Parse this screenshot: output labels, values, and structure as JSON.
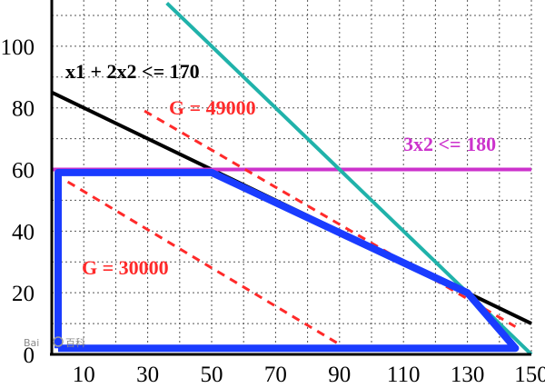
{
  "chart_data": {
    "type": "line",
    "title": "",
    "xlabel": "",
    "ylabel": "",
    "xlim": [
      0,
      150
    ],
    "ylim": [
      0,
      115
    ],
    "grid": true,
    "x_ticks": [
      "10",
      "30",
      "50",
      "70",
      "90",
      "110",
      "130",
      "150"
    ],
    "y_ticks": [
      "0",
      "20",
      "40",
      "60",
      "80",
      "100"
    ],
    "series": [
      {
        "label": "x1 + 2x2 <= 170",
        "color": "#000000",
        "style": "solid",
        "x": [
          0,
          150
        ],
        "y": [
          85,
          10
        ]
      },
      {
        "label": "3x2 <= 180",
        "color": "#cc33cc",
        "style": "solid",
        "x": [
          0,
          150
        ],
        "y": [
          60,
          60
        ]
      },
      {
        "label": "",
        "color": "#20b2aa",
        "style": "solid",
        "x": [
          36,
          150
        ],
        "y": [
          114,
          0
        ]
      },
      {
        "label": "G = 49000",
        "color": "#ff2a2a",
        "style": "dashed",
        "x": [
          29,
          145
        ],
        "y": [
          79,
          9
        ]
      },
      {
        "label": "G = 30000",
        "color": "#ff2a2a",
        "style": "dashed",
        "x": [
          5,
          92
        ],
        "y": [
          56,
          2
        ]
      },
      {
        "label": "",
        "color": "#1a3cff",
        "style": "solid-thick",
        "x": [
          2,
          2,
          50,
          130,
          145,
          2
        ],
        "y": [
          2,
          59,
          59,
          20,
          2,
          2
        ]
      }
    ],
    "annotations": [
      {
        "text": "x1 + 2x2 <= 170",
        "color": "#000000"
      },
      {
        "text": "G = 49000",
        "color": "#ff2a2a"
      },
      {
        "text": "3x2 <= 180",
        "color": "#cc33cc"
      },
      {
        "text": "G = 30000",
        "color": "#ff2a2a"
      }
    ]
  },
  "watermark": {
    "brand": "Bai",
    "text": "百科"
  }
}
